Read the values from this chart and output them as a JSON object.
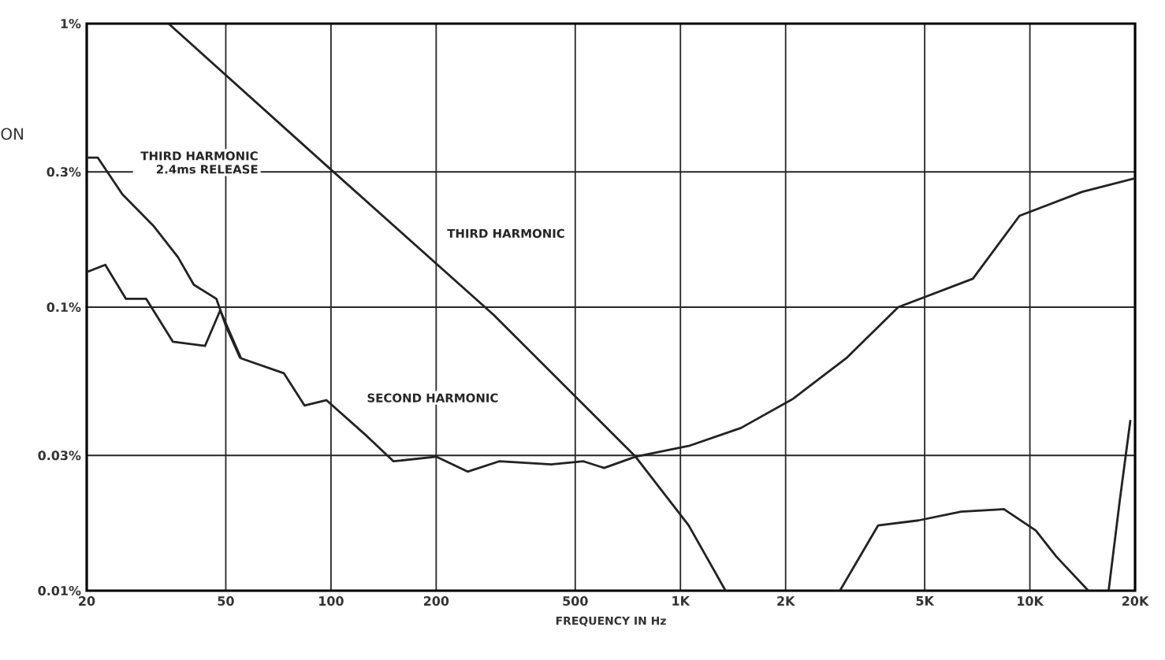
{
  "chart_data": {
    "type": "line",
    "xlabel": "FREQUENCY IN Hz",
    "annotations": [
      "ON"
    ],
    "log": "xy",
    "grid": true,
    "marker": "none",
    "line_style": "solid",
    "xlim": [
      20,
      20000
    ],
    "ylim": [
      0.01,
      1
    ],
    "xticks": [
      20,
      50,
      100,
      200,
      500,
      {
        "value": 1000,
        "label": "1K"
      },
      {
        "value": 2000,
        "label": "2K"
      },
      {
        "value": 5000,
        "label": "5K"
      },
      {
        "value": 10000,
        "label": "10K"
      },
      {
        "value": 20000,
        "label": "20K"
      }
    ],
    "yticks": [
      {
        "value": 0.01,
        "label": "0.01%"
      },
      {
        "value": 0.03,
        "label": "0.03%"
      },
      {
        "value": 0.1,
        "label": "0.1%"
      },
      {
        "value": 0.3,
        "label": "0.3%"
      },
      {
        "value": 1,
        "label": "1%"
      }
    ],
    "series": [
      {
        "name": "SECOND HARMONIC",
        "color": "#222222",
        "x": [
          20,
          22.6,
          25.9,
          29.6,
          35.3,
          43.6,
          48.2,
          55.3,
          73.3,
          84,
          97,
          127,
          151,
          200,
          246,
          303,
          427,
          528,
          605,
          744,
          1056,
          1490,
          2100,
          2980,
          4200,
          6870,
          9340,
          14100,
          20000
        ],
        "values": [
          0.133,
          0.141,
          0.107,
          0.107,
          0.0755,
          0.073,
          0.0975,
          0.066,
          0.0585,
          0.045,
          0.047,
          0.035,
          0.0286,
          0.0297,
          0.0263,
          0.0286,
          0.0279,
          0.0286,
          0.0271,
          0.0297,
          0.0324,
          0.0375,
          0.0475,
          0.066,
          0.1,
          0.126,
          0.21,
          0.255,
          0.285
        ]
      },
      {
        "name": "THIRD HARMONIC",
        "color": "#222222",
        "x": [
          34.3,
          97,
          292,
          744,
          1056,
          1346,
          2000,
          2860,
          3680,
          4800,
          6360,
          8420,
          10400,
          11900,
          14700,
          15500,
          16800,
          18100,
          19400
        ],
        "values": [
          1,
          0.316,
          0.094,
          0.0297,
          0.017,
          0.01,
          null,
          0.01,
          0.017,
          0.0177,
          0.019,
          0.0194,
          0.0163,
          0.0132,
          0.01,
          null,
          0.01,
          0.021,
          0.04
        ]
      },
      {
        "name": "THIRD HARMONIC 2.4ms RELEASE",
        "color": "#222222",
        "x": [
          20,
          21.5,
          25.3,
          31,
          36.5,
          40.5,
          47,
          50,
          55
        ],
        "values": [
          0.337,
          0.337,
          0.25,
          0.194,
          0.15,
          0.12,
          0.107,
          0.086,
          0.066
        ]
      }
    ]
  }
}
